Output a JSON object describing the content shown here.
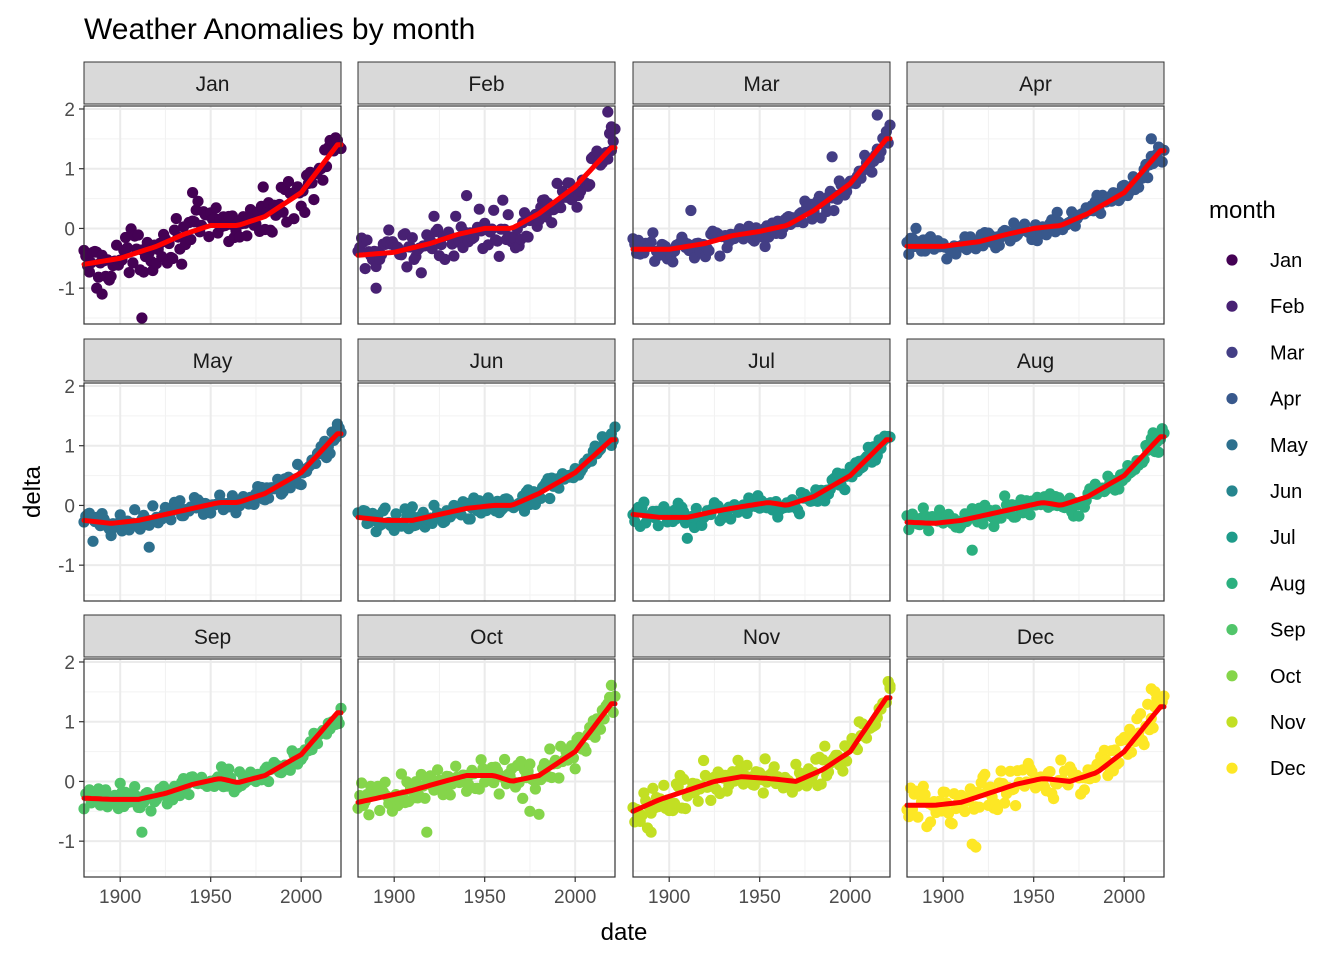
{
  "chart_data": {
    "type": "scatter",
    "title": "Weather Anomalies by month",
    "xlabel": "date",
    "ylabel": "delta",
    "xlim": [
      1880,
      2022
    ],
    "ylim": [
      -1.6,
      2.05
    ],
    "x_ticks": [
      1900,
      1950,
      2000
    ],
    "y_ticks": [
      -1,
      0,
      1,
      2
    ],
    "y_tick_labels": [
      "-1",
      "0",
      "1",
      "2"
    ],
    "grid": true,
    "facets": "month",
    "facet_layout": "3 rows x 4 columns",
    "legend": {
      "title": "month",
      "position": "right"
    },
    "trend_color": "#ff0000",
    "series": [
      {
        "name": "Jan",
        "color": "#440154",
        "trend": [
          [
            1880,
            -0.6
          ],
          [
            1900,
            -0.5
          ],
          [
            1920,
            -0.3
          ],
          [
            1935,
            -0.1
          ],
          [
            1950,
            0.05
          ],
          [
            1965,
            0.05
          ],
          [
            1980,
            0.2
          ],
          [
            2000,
            0.6
          ],
          [
            2020,
            1.4
          ]
        ],
        "noise": 0.26,
        "outliers": [
          [
            1912,
            -1.5
          ],
          [
            1887,
            -1.0
          ],
          [
            1890,
            -1.1
          ],
          [
            1940,
            0.6
          ],
          [
            1960,
            0.2
          ]
        ]
      },
      {
        "name": "Feb",
        "color": "#482173",
        "trend": [
          [
            1880,
            -0.45
          ],
          [
            1900,
            -0.4
          ],
          [
            1920,
            -0.25
          ],
          [
            1935,
            -0.1
          ],
          [
            1950,
            0.0
          ],
          [
            1965,
            0.0
          ],
          [
            1980,
            0.25
          ],
          [
            2000,
            0.7
          ],
          [
            2020,
            1.35
          ]
        ],
        "noise": 0.25,
        "outliers": [
          [
            1890,
            -1.0
          ],
          [
            2018,
            1.95
          ],
          [
            2020,
            1.7
          ],
          [
            1940,
            0.55
          ]
        ]
      },
      {
        "name": "Mar",
        "color": "#433E85",
        "trend": [
          [
            1880,
            -0.35
          ],
          [
            1900,
            -0.35
          ],
          [
            1920,
            -0.25
          ],
          [
            1935,
            -0.12
          ],
          [
            1950,
            -0.05
          ],
          [
            1965,
            0.05
          ],
          [
            1980,
            0.3
          ],
          [
            2000,
            0.75
          ],
          [
            2020,
            1.5
          ]
        ],
        "noise": 0.17,
        "outliers": [
          [
            2015,
            1.9
          ],
          [
            1990,
            1.2
          ],
          [
            1912,
            0.3
          ]
        ]
      },
      {
        "name": "Apr",
        "color": "#38588C",
        "trend": [
          [
            1880,
            -0.3
          ],
          [
            1900,
            -0.3
          ],
          [
            1920,
            -0.22
          ],
          [
            1935,
            -0.1
          ],
          [
            1950,
            0.0
          ],
          [
            1965,
            0.05
          ],
          [
            1980,
            0.25
          ],
          [
            2000,
            0.6
          ],
          [
            2020,
            1.3
          ]
        ],
        "noise": 0.15,
        "outliers": [
          [
            2015,
            1.5
          ],
          [
            1885,
            0.0
          ]
        ]
      },
      {
        "name": "May",
        "color": "#2D708E",
        "trend": [
          [
            1880,
            -0.25
          ],
          [
            1895,
            -0.3
          ],
          [
            1910,
            -0.25
          ],
          [
            1925,
            -0.15
          ],
          [
            1940,
            -0.05
          ],
          [
            1955,
            0.05
          ],
          [
            1965,
            0.05
          ],
          [
            1980,
            0.2
          ],
          [
            2000,
            0.55
          ],
          [
            2020,
            1.2
          ]
        ],
        "noise": 0.14,
        "outliers": [
          [
            1916,
            -0.7
          ],
          [
            1885,
            -0.6
          ],
          [
            2020,
            1.3
          ]
        ]
      },
      {
        "name": "Jun",
        "color": "#25858E",
        "trend": [
          [
            1880,
            -0.2
          ],
          [
            1895,
            -0.25
          ],
          [
            1910,
            -0.25
          ],
          [
            1925,
            -0.15
          ],
          [
            1940,
            -0.05
          ],
          [
            1955,
            0.0
          ],
          [
            1965,
            0.0
          ],
          [
            1980,
            0.2
          ],
          [
            2000,
            0.55
          ],
          [
            2020,
            1.1
          ]
        ],
        "noise": 0.13,
        "outliers": [
          [
            2020,
            1.2
          ]
        ]
      },
      {
        "name": "Jul",
        "color": "#1E9B8A",
        "trend": [
          [
            1880,
            -0.15
          ],
          [
            1895,
            -0.2
          ],
          [
            1910,
            -0.2
          ],
          [
            1925,
            -0.1
          ],
          [
            1940,
            -0.02
          ],
          [
            1955,
            0.05
          ],
          [
            1965,
            0.0
          ],
          [
            1980,
            0.15
          ],
          [
            2000,
            0.5
          ],
          [
            2020,
            1.1
          ]
        ],
        "noise": 0.13,
        "outliers": [
          [
            1910,
            -0.55
          ]
        ]
      },
      {
        "name": "Aug",
        "color": "#2BB07F",
        "trend": [
          [
            1880,
            -0.28
          ],
          [
            1895,
            -0.3
          ],
          [
            1910,
            -0.25
          ],
          [
            1925,
            -0.15
          ],
          [
            1940,
            -0.05
          ],
          [
            1955,
            0.05
          ],
          [
            1965,
            0.0
          ],
          [
            1980,
            0.15
          ],
          [
            2000,
            0.5
          ],
          [
            2020,
            1.15
          ]
        ],
        "noise": 0.14,
        "outliers": [
          [
            1916,
            -0.75
          ]
        ]
      },
      {
        "name": "Sep",
        "color": "#51C56A",
        "trend": [
          [
            1880,
            -0.28
          ],
          [
            1895,
            -0.3
          ],
          [
            1910,
            -0.3
          ],
          [
            1925,
            -0.2
          ],
          [
            1940,
            -0.05
          ],
          [
            1955,
            0.05
          ],
          [
            1965,
            -0.02
          ],
          [
            1980,
            0.1
          ],
          [
            2000,
            0.45
          ],
          [
            2020,
            1.15
          ]
        ],
        "noise": 0.14,
        "outliers": [
          [
            1912,
            -0.85
          ]
        ]
      },
      {
        "name": "Oct",
        "color": "#85D54A",
        "trend": [
          [
            1880,
            -0.35
          ],
          [
            1895,
            -0.25
          ],
          [
            1910,
            -0.15
          ],
          [
            1925,
            -0.02
          ],
          [
            1940,
            0.1
          ],
          [
            1955,
            0.1
          ],
          [
            1965,
            0.0
          ],
          [
            1980,
            0.1
          ],
          [
            2000,
            0.5
          ],
          [
            2020,
            1.3
          ]
        ],
        "noise": 0.2,
        "outliers": [
          [
            1918,
            -0.85
          ],
          [
            1975,
            -0.5
          ],
          [
            1980,
            -0.55
          ]
        ]
      },
      {
        "name": "Nov",
        "color": "#C2DF23",
        "trend": [
          [
            1880,
            -0.5
          ],
          [
            1895,
            -0.3
          ],
          [
            1910,
            -0.15
          ],
          [
            1925,
            0.0
          ],
          [
            1940,
            0.08
          ],
          [
            1955,
            0.05
          ],
          [
            1970,
            0.0
          ],
          [
            1985,
            0.2
          ],
          [
            2000,
            0.5
          ],
          [
            2020,
            1.4
          ]
        ],
        "noise": 0.22,
        "outliers": [
          [
            2022,
            1.6
          ],
          [
            1890,
            -0.85
          ]
        ]
      },
      {
        "name": "Dec",
        "color": "#FDE725",
        "trend": [
          [
            1880,
            -0.4
          ],
          [
            1895,
            -0.4
          ],
          [
            1910,
            -0.35
          ],
          [
            1925,
            -0.2
          ],
          [
            1940,
            -0.05
          ],
          [
            1955,
            0.05
          ],
          [
            1970,
            0.0
          ],
          [
            1985,
            0.15
          ],
          [
            2000,
            0.5
          ],
          [
            2020,
            1.25
          ]
        ],
        "noise": 0.22,
        "outliers": [
          [
            1918,
            -1.1
          ],
          [
            1916,
            -1.05
          ],
          [
            2015,
            1.55
          ],
          [
            2017,
            1.5
          ]
        ]
      }
    ]
  }
}
